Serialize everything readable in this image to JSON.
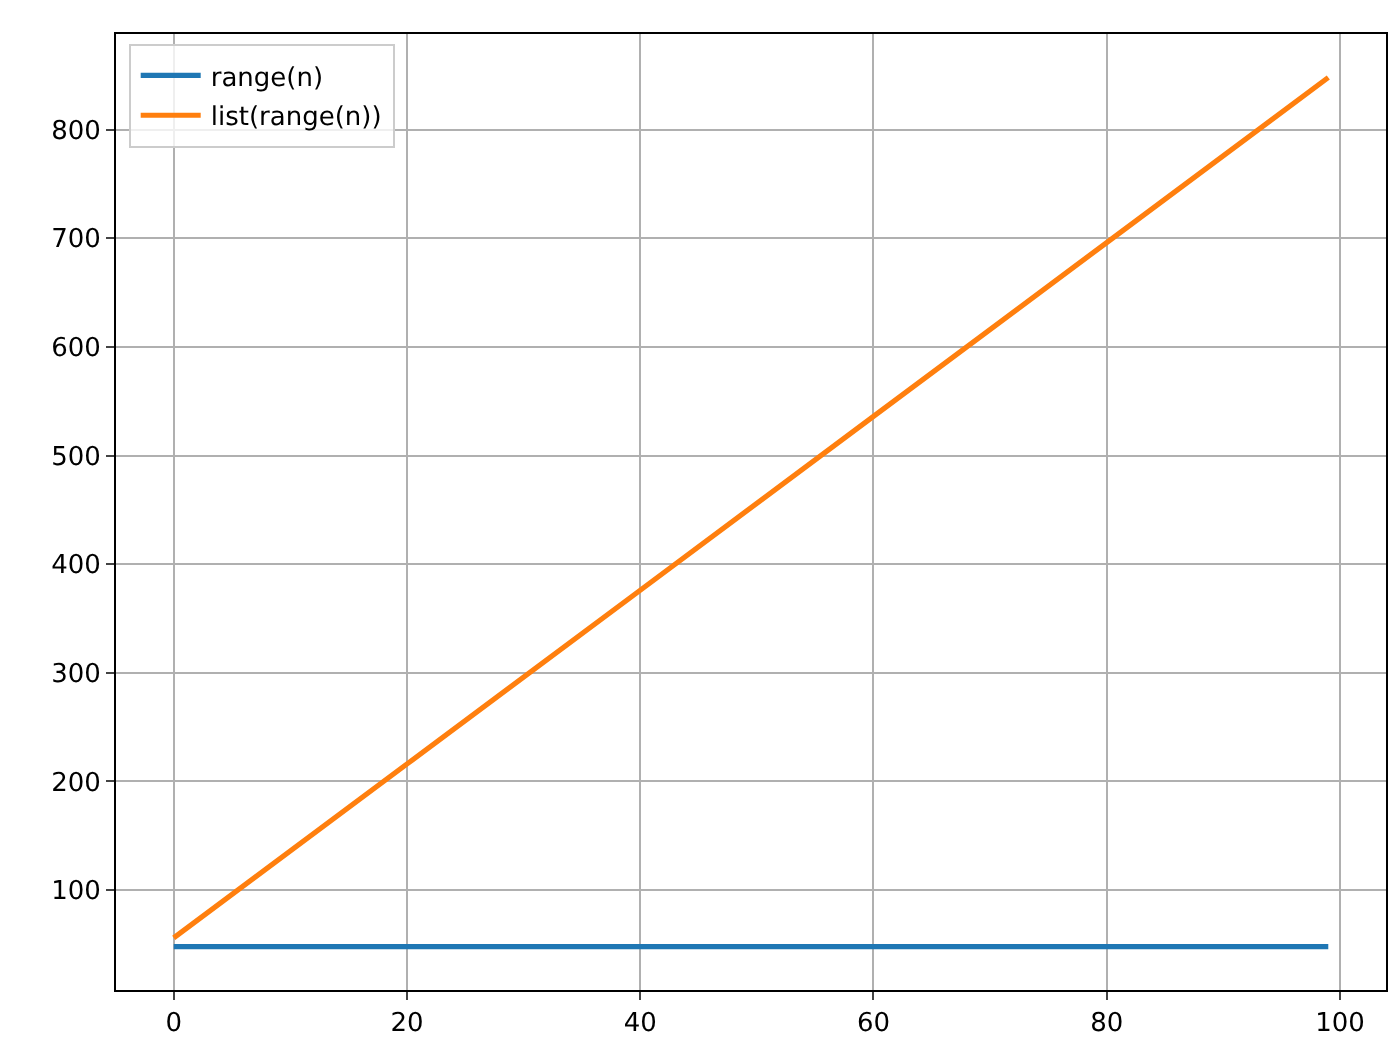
{
  "chart_data": {
    "type": "line",
    "x": [
      0,
      20,
      40,
      60,
      80,
      99
    ],
    "series": [
      {
        "name": "range(n)",
        "color": "#1f77b4",
        "values": [
          48,
          48,
          48,
          48,
          48,
          48
        ]
      },
      {
        "name": "list(range(n))",
        "color": "#ff7f0e",
        "values": [
          56,
          216,
          376,
          536,
          696,
          848
        ]
      }
    ],
    "xlim": [
      -4.95,
      103.95
    ],
    "xticks": [
      0,
      20,
      40,
      60,
      80,
      100
    ],
    "ylim": [
      8,
      888
    ],
    "yticks": [
      100,
      200,
      300,
      400,
      500,
      600,
      700,
      800
    ],
    "grid": true,
    "legend": "top left",
    "marker": "none",
    "line_style": "solid"
  }
}
